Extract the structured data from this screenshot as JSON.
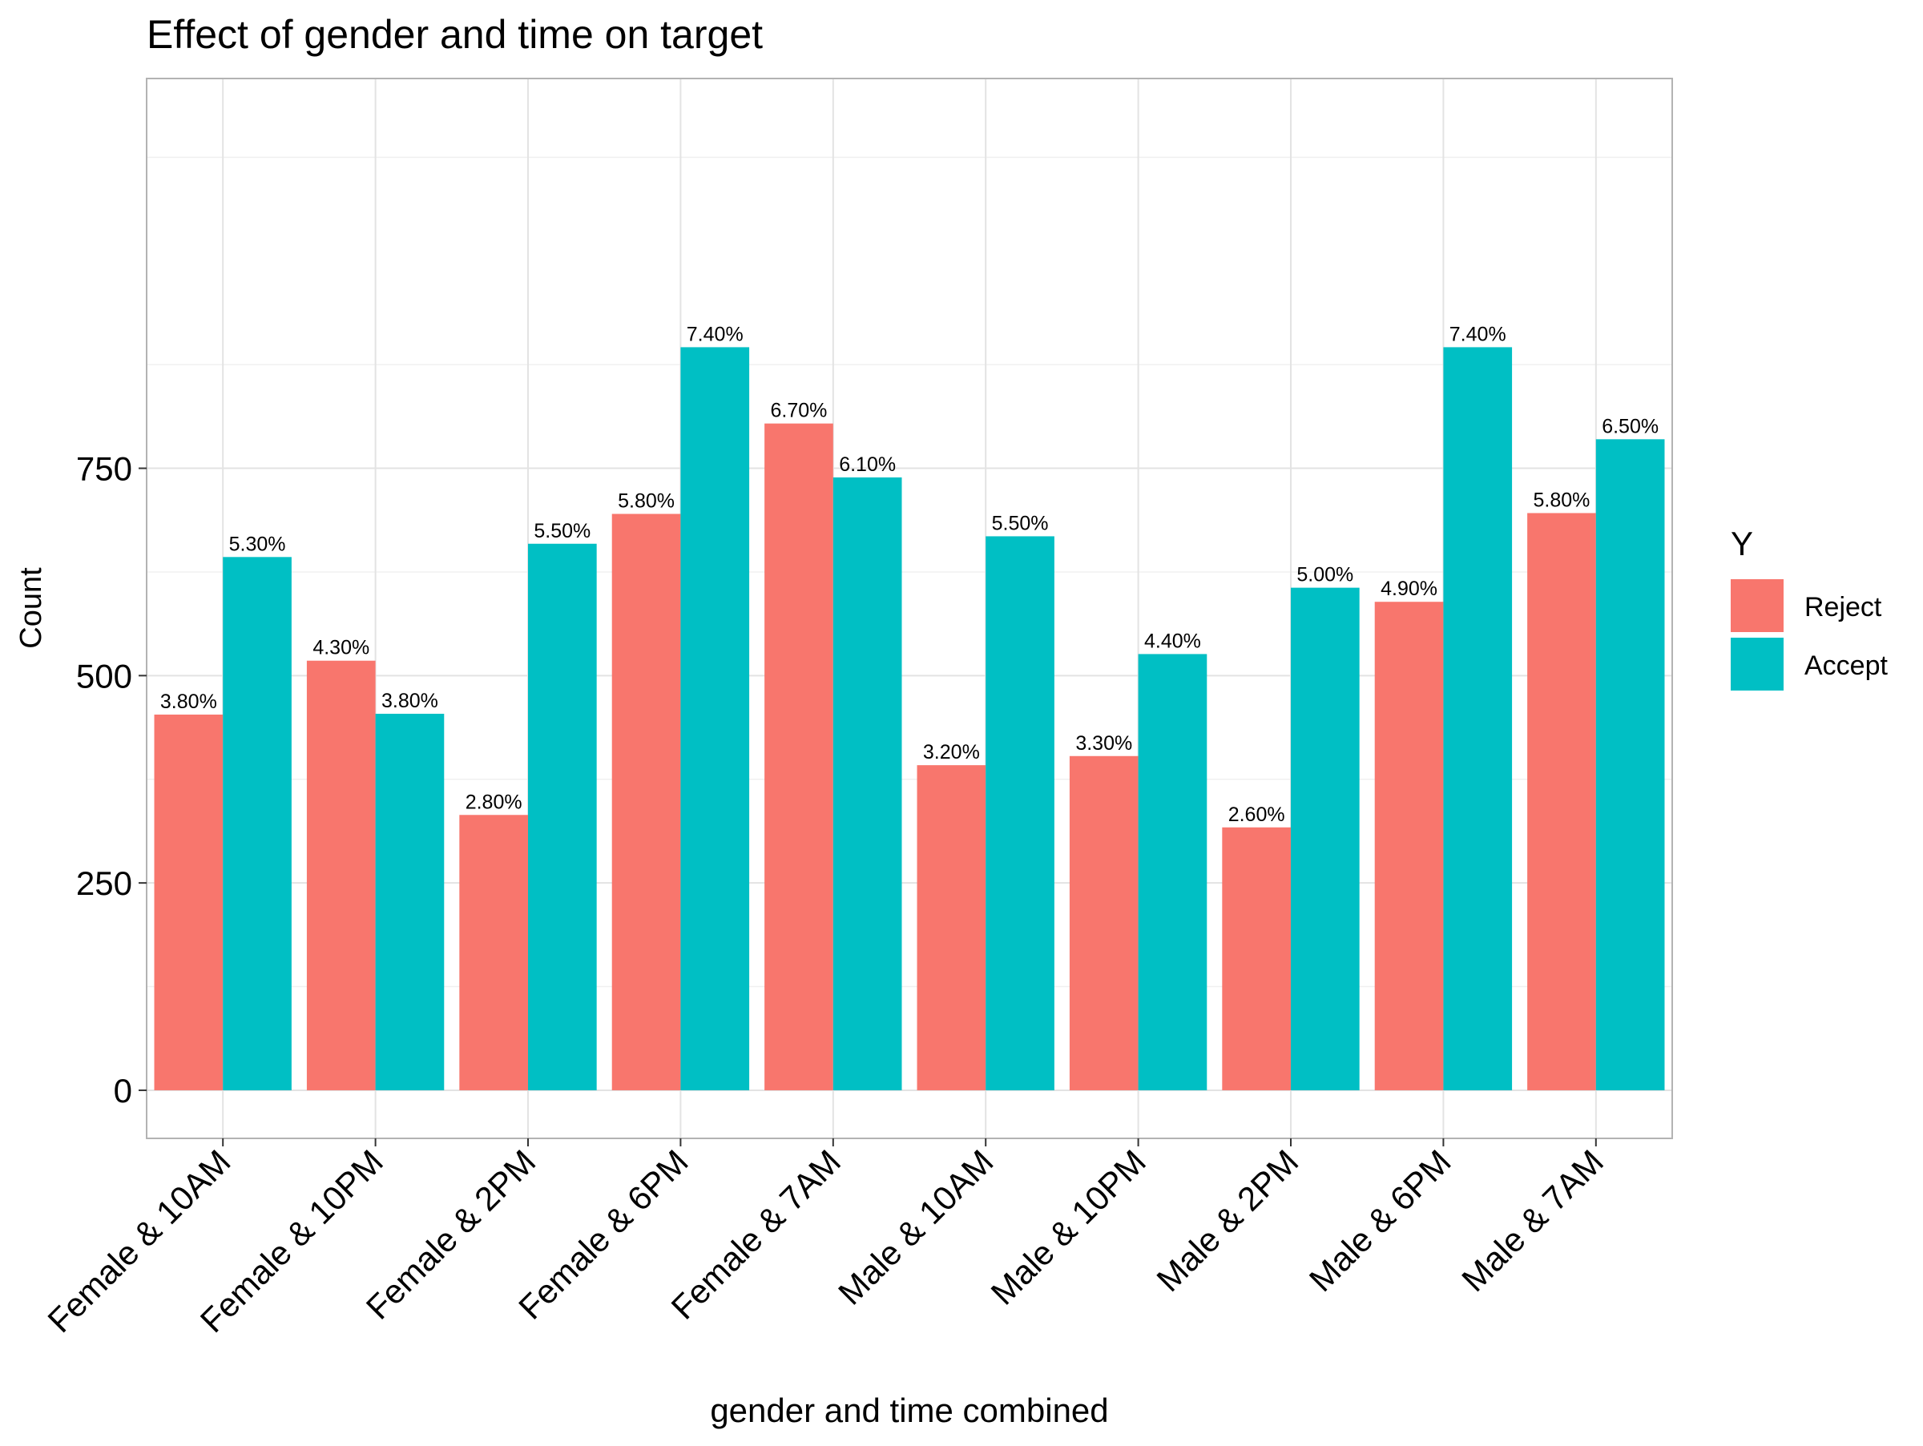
{
  "chart_data": {
    "type": "bar",
    "title": "Effect of gender and time on target",
    "xlabel": "gender and time combined",
    "ylabel": "Count",
    "ylim": [
      -58,
      1220
    ],
    "yticks": [
      0,
      250,
      500,
      750
    ],
    "yticks_label": [
      "0",
      "250",
      "500",
      "750"
    ],
    "grid": true,
    "legend": {
      "title": "Y",
      "placement": "right"
    },
    "categories": [
      "Female & 10AM",
      "Female & 10PM",
      "Female & 2PM",
      "Female & 6PM",
      "Female & 7AM",
      "Male & 10AM",
      "Male & 10PM",
      "Male & 2PM",
      "Male & 6PM",
      "Male & 7AM"
    ],
    "series": [
      {
        "name": "Reject",
        "color": "#F8766D",
        "values": [
          453,
          518,
          332,
          695,
          804,
          392,
          403,
          317,
          589,
          696
        ],
        "labels": [
          "3.80%",
          "4.30%",
          "2.80%",
          "5.80%",
          "6.70%",
          "3.20%",
          "3.30%",
          "2.60%",
          "4.90%",
          "5.80%"
        ]
      },
      {
        "name": "Accept",
        "color": "#00BFC4",
        "values": [
          643,
          454,
          659,
          896,
          739,
          668,
          526,
          606,
          896,
          785
        ],
        "labels": [
          "5.30%",
          "3.80%",
          "5.50%",
          "7.40%",
          "6.10%",
          "5.50%",
          "4.40%",
          "5.00%",
          "7.40%",
          "6.50%"
        ]
      }
    ]
  }
}
